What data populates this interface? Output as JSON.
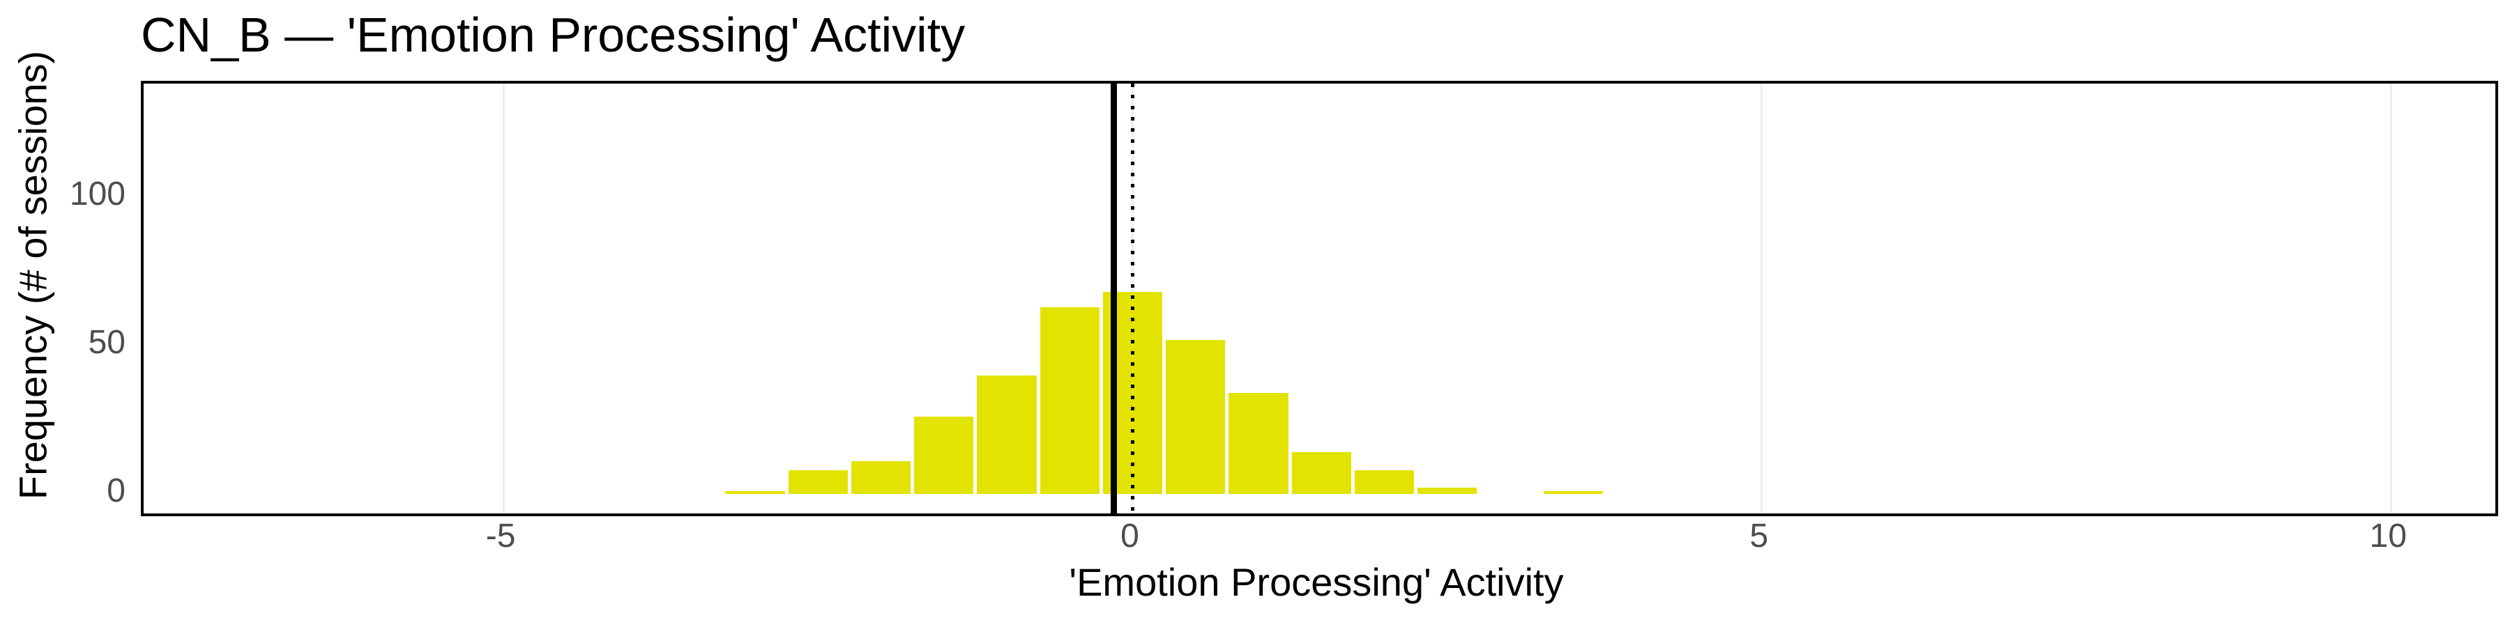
{
  "chart_data": {
    "type": "bar",
    "subtype": "histogram",
    "title": "CN_B — 'Emotion Processing' Activity",
    "xlabel": "'Emotion Processing' Activity",
    "ylabel": "Frequency (# of sessions)",
    "bin_width": 0.5,
    "bin_centers": [
      -3.0,
      -2.5,
      -2.0,
      -1.5,
      -1.0,
      -0.5,
      0.0,
      0.5,
      1.0,
      1.5,
      2.0,
      2.5,
      3.0,
      3.5
    ],
    "counts": [
      1,
      8,
      11,
      26,
      40,
      63,
      68,
      52,
      34,
      14,
      8,
      2,
      0,
      1
    ],
    "x_ticks": [
      -5,
      0,
      5,
      10
    ],
    "x_tick_labels": [
      "-5",
      "0",
      "5",
      "10"
    ],
    "y_ticks": [
      0,
      50,
      100
    ],
    "y_tick_labels": [
      "0",
      "50",
      "100"
    ],
    "xlim": [
      -7.86,
      10.83
    ],
    "ylim": [
      -6.58,
      138.3
    ],
    "grid": "vertical-major-only",
    "legend": "none",
    "vlines": [
      {
        "x": -0.15,
        "style": "solid",
        "color": "#000000",
        "name": "mean-line"
      },
      {
        "x": 0.0,
        "style": "dotted",
        "color": "#000000",
        "name": "zero-reference-line"
      }
    ],
    "bar_color": "#e3e300",
    "bar_gap_color": "#ffffff",
    "axis_text_color": "#4d4d4d",
    "grid_color": "#ededed",
    "panel_border_color": "#000000",
    "background_color": "#ffffff"
  }
}
